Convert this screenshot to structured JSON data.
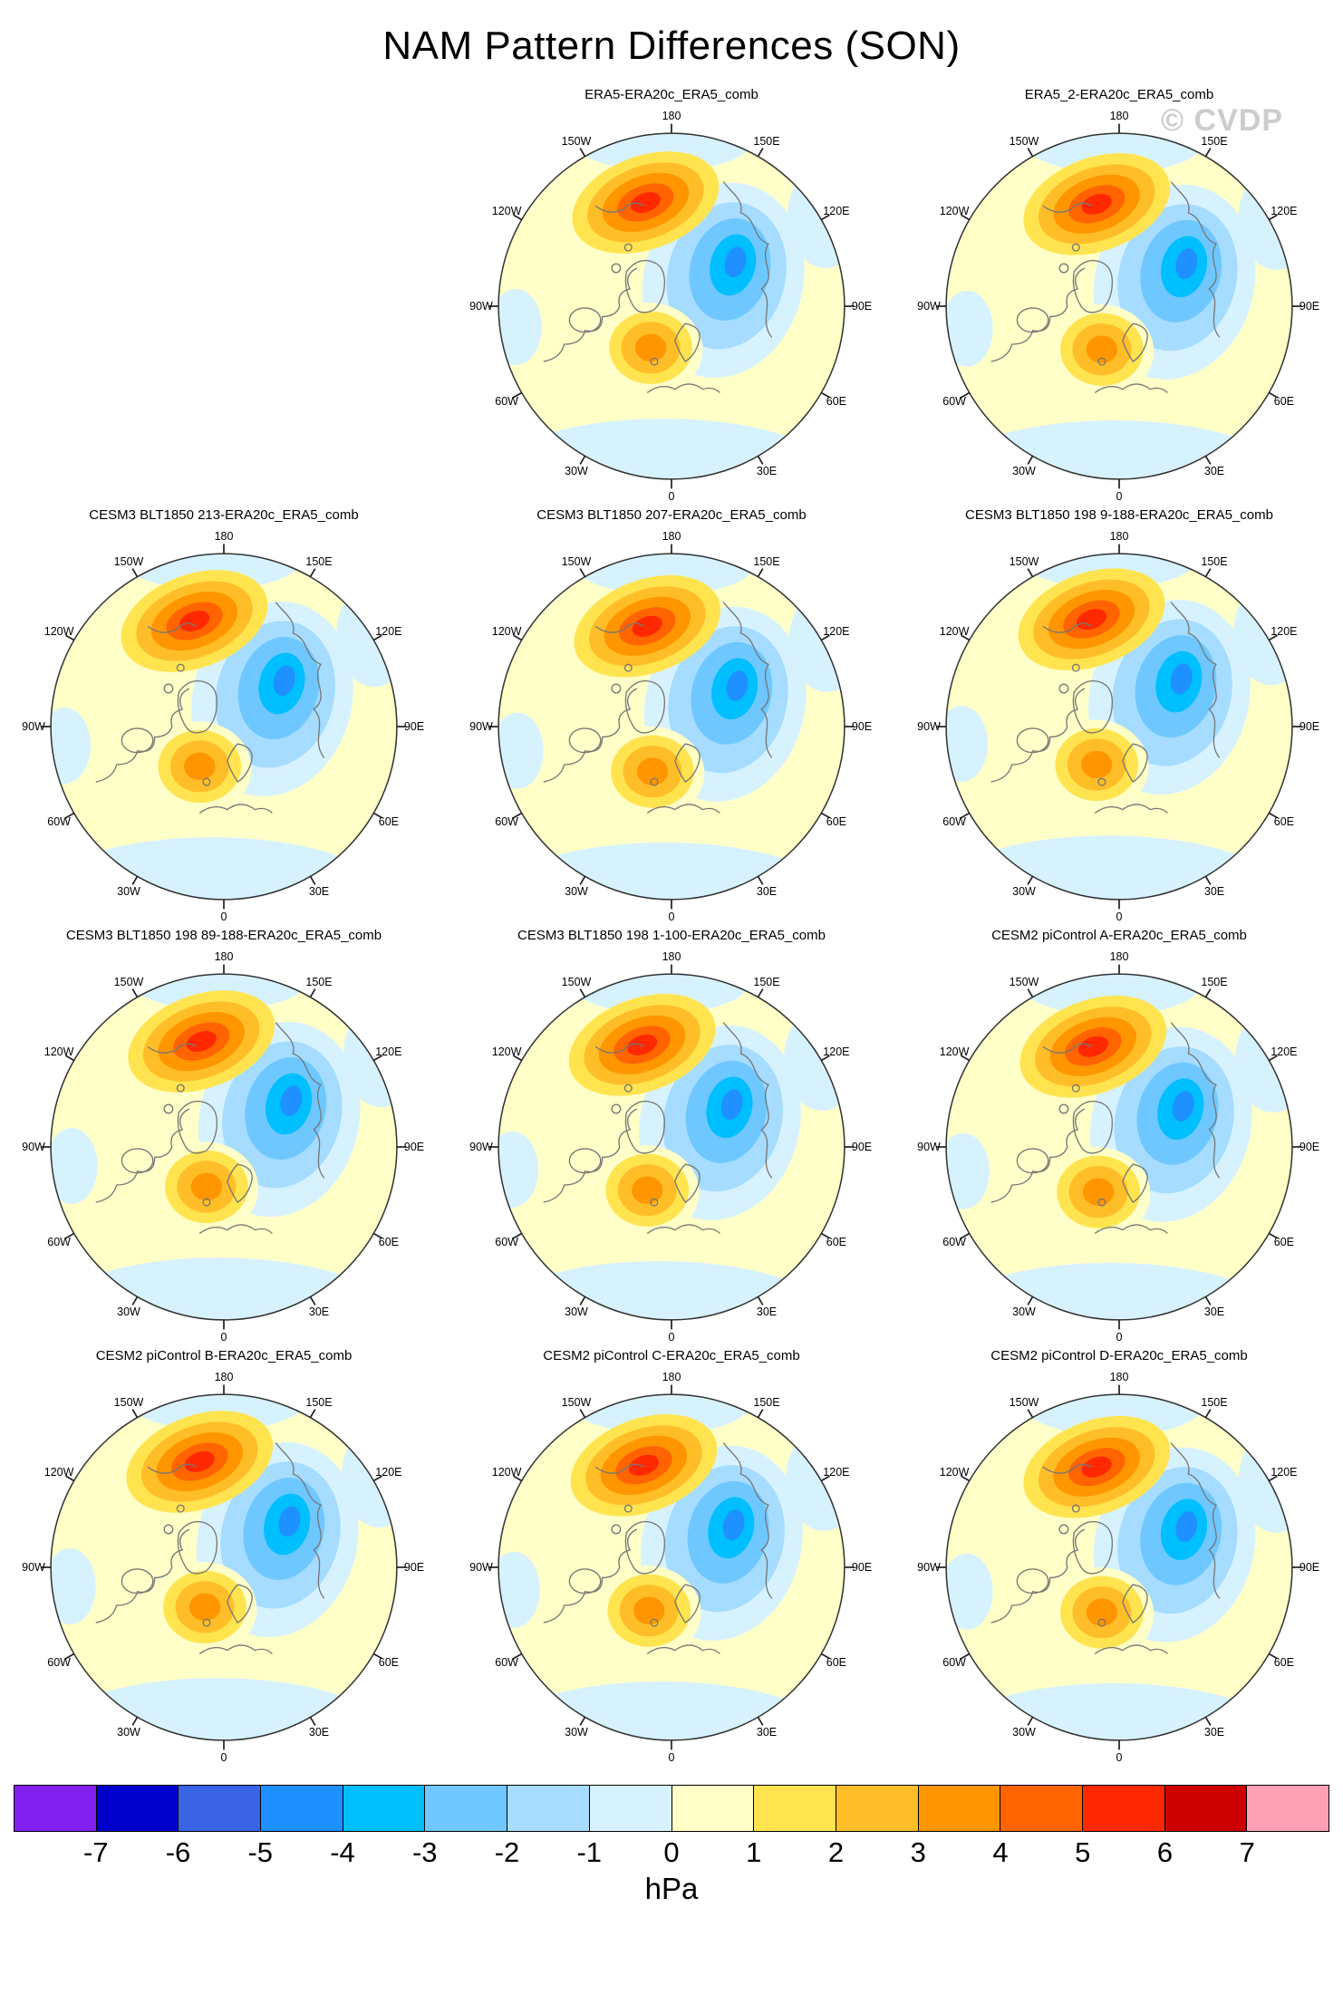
{
  "page": {
    "title": "NAM Pattern Differences (SON)",
    "watermark": "© CVDP"
  },
  "panels": [
    {
      "title": "ERA5-ERA20c_ERA5_comb",
      "row": 1,
      "col": 2
    },
    {
      "title": "ERA5_2-ERA20c_ERA5_comb",
      "row": 1,
      "col": 3
    },
    {
      "title": "CESM3 BLT1850 213-ERA20c_ERA5_comb",
      "row": 2,
      "col": 1
    },
    {
      "title": "CESM3 BLT1850 207-ERA20c_ERA5_comb",
      "row": 2,
      "col": 2
    },
    {
      "title": "CESM3 BLT1850 198 9-188-ERA20c_ERA5_comb",
      "row": 2,
      "col": 3
    },
    {
      "title": "CESM3 BLT1850 198 89-188-ERA20c_ERA5_comb",
      "row": 3,
      "col": 1
    },
    {
      "title": "CESM3 BLT1850 198 1-100-ERA20c_ERA5_comb",
      "row": 3,
      "col": 2
    },
    {
      "title": "CESM2 piControl A-ERA20c_ERA5_comb",
      "row": 3,
      "col": 3
    },
    {
      "title": "CESM2 piControl B-ERA20c_ERA5_comb",
      "row": 4,
      "col": 1
    },
    {
      "title": "CESM2 piControl C-ERA20c_ERA5_comb",
      "row": 4,
      "col": 2
    },
    {
      "title": "CESM2 piControl D-ERA20c_ERA5_comb",
      "row": 4,
      "col": 3
    }
  ],
  "map_labels": [
    {
      "text": "180",
      "angle": 0
    },
    {
      "text": "150E",
      "angle": 30
    },
    {
      "text": "120E",
      "angle": 60
    },
    {
      "text": "90E",
      "angle": 90
    },
    {
      "text": "60E",
      "angle": 120
    },
    {
      "text": "30E",
      "angle": 150
    },
    {
      "text": "0",
      "angle": 180
    },
    {
      "text": "30W",
      "angle": 210
    },
    {
      "text": "60W",
      "angle": 240
    },
    {
      "text": "90W",
      "angle": 270
    },
    {
      "text": "120W",
      "angle": 300
    },
    {
      "text": "150W",
      "angle": 330
    }
  ],
  "colorbar": {
    "unit": "hPa",
    "tick_labels": [
      "-7",
      "-6",
      "-5",
      "-4",
      "-3",
      "-2",
      "-1",
      "0",
      "1",
      "2",
      "3",
      "4",
      "5",
      "6",
      "7"
    ],
    "colors": [
      "#8220F0",
      "#0000CD",
      "#3A64E6",
      "#1E90FF",
      "#00BFFF",
      "#6EC8FF",
      "#A5DCFF",
      "#D7F2FF",
      "#FFFFC8",
      "#FFE450",
      "#FFBE28",
      "#FF9600",
      "#FF6400",
      "#FF2800",
      "#CD0000",
      "#FFA0B4"
    ]
  },
  "chart_data": {
    "type": "heatmap",
    "title": "NAM Pattern Differences (SON)",
    "projection": "north-polar-stereographic",
    "units": "hPa",
    "contour_levels": [
      -7,
      -6,
      -5,
      -4,
      -3,
      -2,
      -1,
      0,
      1,
      2,
      3,
      4,
      5,
      6,
      7
    ],
    "colorbar_colors": [
      "#8220F0",
      "#0000CD",
      "#3A64E6",
      "#1E90FF",
      "#00BFFF",
      "#6EC8FF",
      "#A5DCFF",
      "#D7F2FF",
      "#FFFFC8",
      "#FFE450",
      "#FFBE28",
      "#FF9600",
      "#FF6400",
      "#FF2800",
      "#CD0000",
      "#FFA0B4"
    ],
    "longitude_labels": [
      "180",
      "150W",
      "150E",
      "120W",
      "120E",
      "90W",
      "90E",
      "60W",
      "60E",
      "30W",
      "30E",
      "0"
    ],
    "panels": [
      "ERA5-ERA20c_ERA5_comb",
      "ERA5_2-ERA20c_ERA5_comb",
      "CESM3 BLT1850 213-ERA20c_ERA5_comb",
      "CESM3 BLT1850 207-ERA20c_ERA5_comb",
      "CESM3 BLT1850 198 9-188-ERA20c_ERA5_comb",
      "CESM3 BLT1850 198 89-188-ERA20c_ERA5_comb",
      "CESM3 BLT1850 198 1-100-ERA20c_ERA5_comb",
      "CESM2 piControl A-ERA20c_ERA5_comb",
      "CESM2 piControl B-ERA20c_ERA5_comb",
      "CESM2 piControl C-ERA20c_ERA5_comb",
      "CESM2 piControl D-ERA20c_ERA5_comb"
    ],
    "pattern_summary": "Each panel shows a positive sea-level-pressure anomaly center (up to about +7 hPa) near 150W-180 on the Pacific/Arctic side, a negative anomaly center (down to about -5 hPa) over the Barents/Kara Seas region, and a secondary positive center (about +3 hPa) over southern Europe, on a weakly positive (0 to +1 hPa) background with weak negative (0 to -1 hPa) bands along the map edges."
  }
}
